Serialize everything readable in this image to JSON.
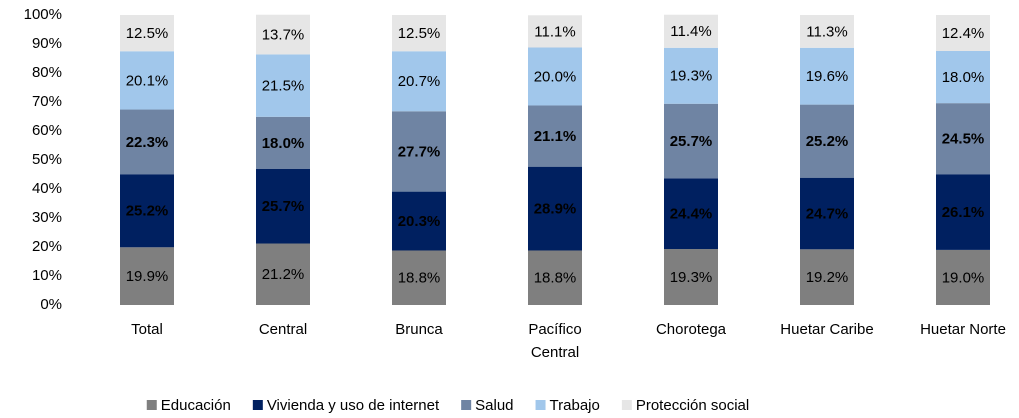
{
  "chart_data": {
    "type": "stacked_bar",
    "categories": [
      "Total",
      "Central",
      "Brunca",
      "Pacífico Central",
      "Chorotega",
      "Huetar Caribe",
      "Huetar Norte"
    ],
    "series": [
      {
        "name": "Educación",
        "color": "#7f7f7f",
        "label_color": "#000000",
        "label_bold": false,
        "values": [
          19.9,
          21.2,
          18.8,
          18.8,
          19.3,
          19.2,
          19.0
        ],
        "value_labels": [
          "19.9%",
          "21.2%",
          "18.8%",
          "18.8%",
          "19.3%",
          "19.2%",
          "19.0%"
        ]
      },
      {
        "name": "Vivienda y uso de internet",
        "color": "#002060",
        "label_color": "#ffffff",
        "label_bold": true,
        "values": [
          25.2,
          25.7,
          20.3,
          28.9,
          24.4,
          24.7,
          26.1
        ],
        "value_labels": [
          "25.2%",
          "25.7%",
          "20.3%",
          "28.9%",
          "24.4%",
          "24.7%",
          "26.1%"
        ]
      },
      {
        "name": "Salud",
        "color": "#6f84a3",
        "label_color": "#ffffff",
        "label_bold": true,
        "values": [
          22.3,
          18.0,
          27.7,
          21.1,
          25.7,
          25.2,
          24.5
        ],
        "value_labels": [
          "22.3%",
          "18.0%",
          "27.7%",
          "21.1%",
          "25.7%",
          "25.2%",
          "24.5%"
        ]
      },
      {
        "name": "Trabajo",
        "color": "#a1c7eb",
        "label_color": "#000000",
        "label_bold": false,
        "values": [
          20.1,
          21.5,
          20.7,
          20.0,
          19.3,
          19.6,
          18.0
        ],
        "value_labels": [
          "20.1%",
          "21.5%",
          "20.7%",
          "20.0%",
          "19.3%",
          "19.6%",
          "18.0%"
        ]
      },
      {
        "name": "Protección social",
        "color": "#e6e6e6",
        "label_color": "#000000",
        "label_bold": false,
        "values": [
          12.5,
          13.7,
          12.5,
          11.1,
          11.4,
          11.3,
          12.4
        ],
        "value_labels": [
          "12.5%",
          "13.7%",
          "12.5%",
          "11.1%",
          "11.4%",
          "11.3%",
          "12.4%"
        ]
      }
    ],
    "ylim": [
      0,
      100
    ],
    "yticks": [
      {
        "value": 0,
        "label": "0%"
      },
      {
        "value": 10,
        "label": "10%"
      },
      {
        "value": 20,
        "label": "20%"
      },
      {
        "value": 30,
        "label": "30%"
      },
      {
        "value": 40,
        "label": "40%"
      },
      {
        "value": 50,
        "label": "50%"
      },
      {
        "value": 60,
        "label": "60%"
      },
      {
        "value": 70,
        "label": "70%"
      },
      {
        "value": 80,
        "label": "80%"
      },
      {
        "value": 90,
        "label": "90%"
      },
      {
        "value": 100,
        "label": "100%"
      }
    ],
    "grid": false,
    "legend": "bottom"
  }
}
